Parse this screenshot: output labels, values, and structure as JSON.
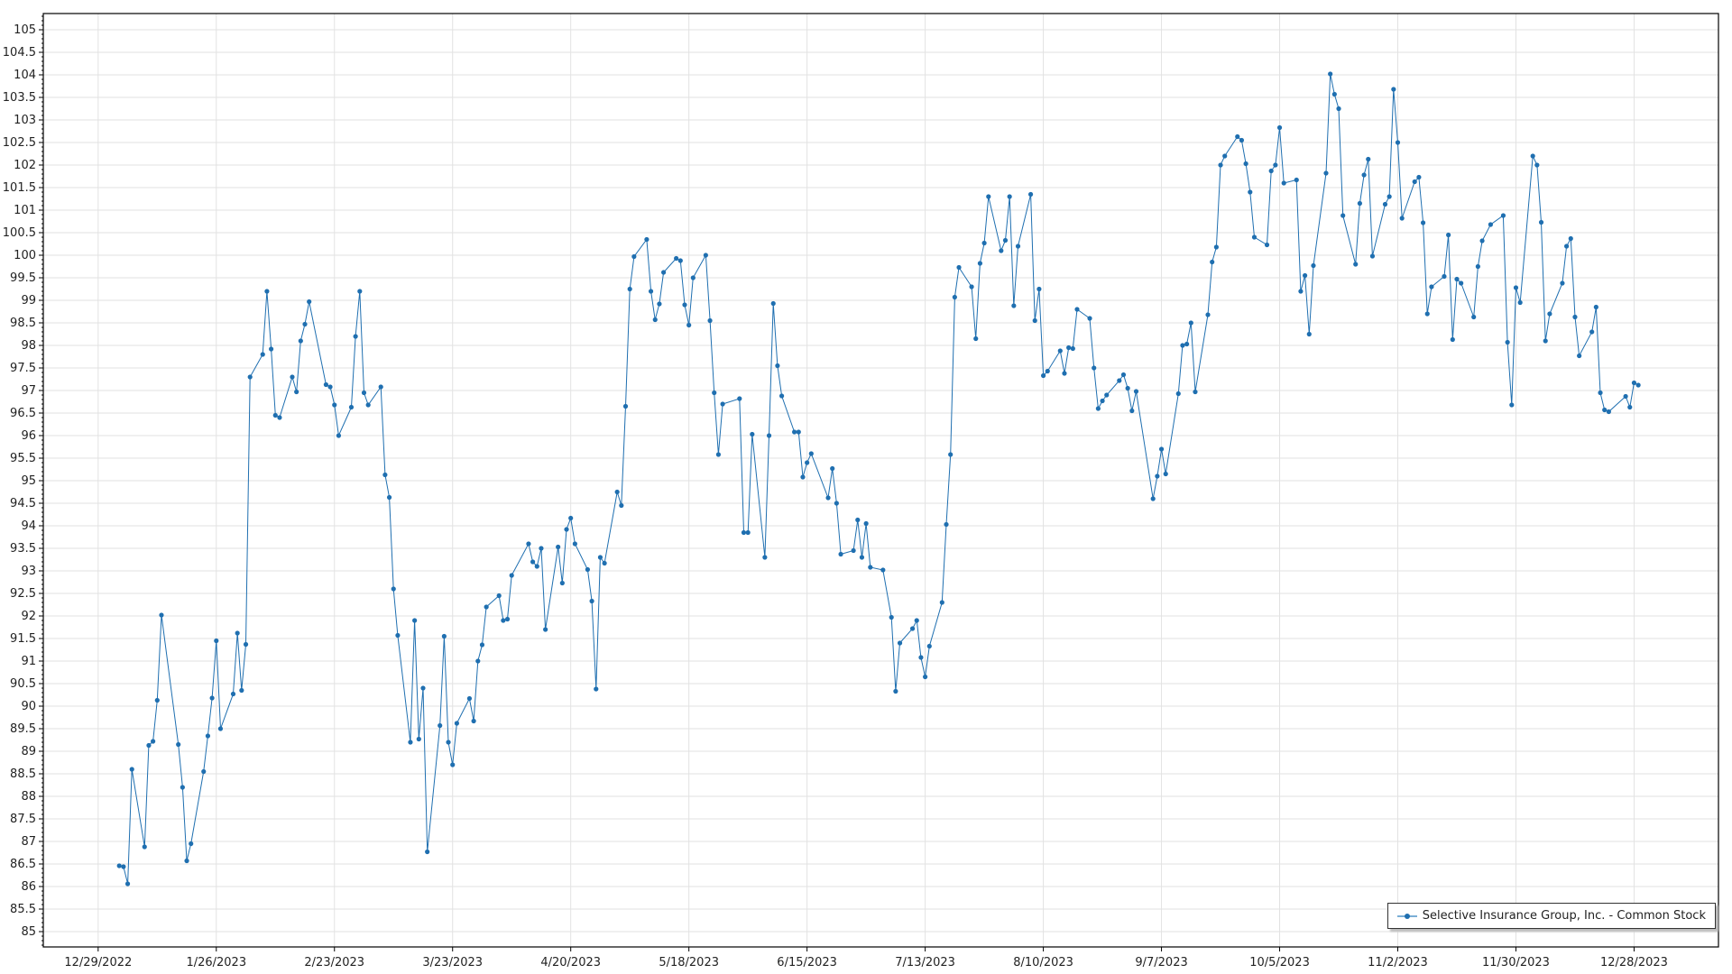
{
  "chart_data": {
    "type": "line",
    "series": [
      {
        "name": "Selective Insurance Group, Inc. - Common Stock",
        "color": "#1f6fb0",
        "points": [
          [
            "2023-01-03",
            86.46
          ],
          [
            "2023-01-04",
            86.44
          ],
          [
            "2023-01-05",
            86.06
          ],
          [
            "2023-01-06",
            88.6
          ],
          [
            "2023-01-09",
            86.88
          ],
          [
            "2023-01-10",
            89.13
          ],
          [
            "2023-01-11",
            89.22
          ],
          [
            "2023-01-12",
            90.13
          ],
          [
            "2023-01-13",
            92.02
          ],
          [
            "2023-01-17",
            89.15
          ],
          [
            "2023-01-18",
            88.2
          ],
          [
            "2023-01-19",
            86.57
          ],
          [
            "2023-01-20",
            86.95
          ],
          [
            "2023-01-23",
            88.55
          ],
          [
            "2023-01-24",
            89.34
          ],
          [
            "2023-01-25",
            90.18
          ],
          [
            "2023-01-26",
            91.45
          ],
          [
            "2023-01-27",
            89.5
          ],
          [
            "2023-01-30",
            90.27
          ],
          [
            "2023-01-31",
            91.62
          ],
          [
            "2023-02-01",
            90.35
          ],
          [
            "2023-02-02",
            91.37
          ],
          [
            "2023-02-03",
            97.3
          ],
          [
            "2023-02-06",
            97.8
          ],
          [
            "2023-02-07",
            99.2
          ],
          [
            "2023-02-08",
            97.92
          ],
          [
            "2023-02-09",
            96.45
          ],
          [
            "2023-02-10",
            96.4
          ],
          [
            "2023-02-13",
            97.3
          ],
          [
            "2023-02-14",
            96.97
          ],
          [
            "2023-02-15",
            98.1
          ],
          [
            "2023-02-16",
            98.47
          ],
          [
            "2023-02-17",
            98.97
          ],
          [
            "2023-02-21",
            97.13
          ],
          [
            "2023-02-22",
            97.08
          ],
          [
            "2023-02-23",
            96.68
          ],
          [
            "2023-02-24",
            96.0
          ],
          [
            "2023-02-27",
            96.63
          ],
          [
            "2023-02-28",
            98.2
          ],
          [
            "2023-03-01",
            99.2
          ],
          [
            "2023-03-02",
            96.95
          ],
          [
            "2023-03-03",
            96.68
          ],
          [
            "2023-03-06",
            97.08
          ],
          [
            "2023-03-07",
            95.13
          ],
          [
            "2023-03-08",
            94.63
          ],
          [
            "2023-03-09",
            92.6
          ],
          [
            "2023-03-10",
            91.57
          ],
          [
            "2023-03-13",
            89.2
          ],
          [
            "2023-03-14",
            91.9
          ],
          [
            "2023-03-15",
            89.27
          ],
          [
            "2023-03-16",
            90.4
          ],
          [
            "2023-03-17",
            86.77
          ],
          [
            "2023-03-20",
            89.57
          ],
          [
            "2023-03-21",
            91.55
          ],
          [
            "2023-03-22",
            89.2
          ],
          [
            "2023-03-23",
            88.7
          ],
          [
            "2023-03-24",
            89.62
          ],
          [
            "2023-03-27",
            90.17
          ],
          [
            "2023-03-28",
            89.67
          ],
          [
            "2023-03-29",
            91.0
          ],
          [
            "2023-03-30",
            91.36
          ],
          [
            "2023-03-31",
            92.2
          ],
          [
            "2023-04-03",
            92.45
          ],
          [
            "2023-04-04",
            91.9
          ],
          [
            "2023-04-05",
            91.93
          ],
          [
            "2023-04-06",
            92.9
          ],
          [
            "2023-04-10",
            93.6
          ],
          [
            "2023-04-11",
            93.2
          ],
          [
            "2023-04-12",
            93.1
          ],
          [
            "2023-04-13",
            93.5
          ],
          [
            "2023-04-14",
            91.7
          ],
          [
            "2023-04-17",
            93.53
          ],
          [
            "2023-04-18",
            92.73
          ],
          [
            "2023-04-19",
            93.92
          ],
          [
            "2023-04-20",
            94.17
          ],
          [
            "2023-04-21",
            93.6
          ],
          [
            "2023-04-24",
            93.03
          ],
          [
            "2023-04-25",
            92.33
          ],
          [
            "2023-04-26",
            90.38
          ],
          [
            "2023-04-27",
            93.3
          ],
          [
            "2023-04-28",
            93.17
          ],
          [
            "2023-05-01",
            94.75
          ],
          [
            "2023-05-02",
            94.45
          ],
          [
            "2023-05-03",
            96.65
          ],
          [
            "2023-05-04",
            99.25
          ],
          [
            "2023-05-05",
            99.97
          ],
          [
            "2023-05-08",
            100.35
          ],
          [
            "2023-05-09",
            99.2
          ],
          [
            "2023-05-10",
            98.57
          ],
          [
            "2023-05-11",
            98.92
          ],
          [
            "2023-05-12",
            99.62
          ],
          [
            "2023-05-15",
            99.93
          ],
          [
            "2023-05-16",
            99.88
          ],
          [
            "2023-05-17",
            98.9
          ],
          [
            "2023-05-18",
            98.45
          ],
          [
            "2023-05-19",
            99.5
          ],
          [
            "2023-05-22",
            100.0
          ],
          [
            "2023-05-23",
            98.55
          ],
          [
            "2023-05-24",
            96.95
          ],
          [
            "2023-05-25",
            95.58
          ],
          [
            "2023-05-26",
            96.7
          ],
          [
            "2023-05-30",
            96.82
          ],
          [
            "2023-05-31",
            93.85
          ],
          [
            "2023-06-01",
            93.85
          ],
          [
            "2023-06-02",
            96.03
          ],
          [
            "2023-06-05",
            93.3
          ],
          [
            "2023-06-06",
            96.0
          ],
          [
            "2023-06-07",
            98.93
          ],
          [
            "2023-06-08",
            97.55
          ],
          [
            "2023-06-09",
            96.88
          ],
          [
            "2023-06-12",
            96.08
          ],
          [
            "2023-06-13",
            96.08
          ],
          [
            "2023-06-14",
            95.08
          ],
          [
            "2023-06-15",
            95.4
          ],
          [
            "2023-06-16",
            95.6
          ],
          [
            "2023-06-20",
            94.62
          ],
          [
            "2023-06-21",
            95.27
          ],
          [
            "2023-06-22",
            94.5
          ],
          [
            "2023-06-23",
            93.37
          ],
          [
            "2023-06-26",
            93.45
          ],
          [
            "2023-06-27",
            94.13
          ],
          [
            "2023-06-28",
            93.3
          ],
          [
            "2023-06-29",
            94.05
          ],
          [
            "2023-06-30",
            93.08
          ],
          [
            "2023-07-03",
            93.02
          ],
          [
            "2023-07-05",
            91.97
          ],
          [
            "2023-07-06",
            90.33
          ],
          [
            "2023-07-07",
            91.4
          ],
          [
            "2023-07-10",
            91.72
          ],
          [
            "2023-07-11",
            91.9
          ],
          [
            "2023-07-12",
            91.08
          ],
          [
            "2023-07-13",
            90.65
          ],
          [
            "2023-07-14",
            91.33
          ],
          [
            "2023-07-17",
            92.3
          ],
          [
            "2023-07-18",
            94.03
          ],
          [
            "2023-07-19",
            95.58
          ],
          [
            "2023-07-20",
            99.07
          ],
          [
            "2023-07-21",
            99.73
          ],
          [
            "2023-07-24",
            99.3
          ],
          [
            "2023-07-25",
            98.15
          ],
          [
            "2023-07-26",
            99.82
          ],
          [
            "2023-07-27",
            100.27
          ],
          [
            "2023-07-28",
            101.3
          ],
          [
            "2023-07-31",
            100.1
          ],
          [
            "2023-08-01",
            100.33
          ],
          [
            "2023-08-02",
            101.3
          ],
          [
            "2023-08-03",
            98.88
          ],
          [
            "2023-08-04",
            100.2
          ],
          [
            "2023-08-07",
            101.35
          ],
          [
            "2023-08-08",
            98.55
          ],
          [
            "2023-08-09",
            99.25
          ],
          [
            "2023-08-10",
            97.33
          ],
          [
            "2023-08-11",
            97.43
          ],
          [
            "2023-08-14",
            97.88
          ],
          [
            "2023-08-15",
            97.38
          ],
          [
            "2023-08-16",
            97.95
          ],
          [
            "2023-08-17",
            97.93
          ],
          [
            "2023-08-18",
            98.8
          ],
          [
            "2023-08-21",
            98.6
          ],
          [
            "2023-08-22",
            97.5
          ],
          [
            "2023-08-23",
            96.6
          ],
          [
            "2023-08-24",
            96.77
          ],
          [
            "2023-08-25",
            96.9
          ],
          [
            "2023-08-28",
            97.22
          ],
          [
            "2023-08-29",
            97.35
          ],
          [
            "2023-08-30",
            97.05
          ],
          [
            "2023-08-31",
            96.55
          ],
          [
            "2023-09-01",
            96.98
          ],
          [
            "2023-09-05",
            94.6
          ],
          [
            "2023-09-06",
            95.1
          ],
          [
            "2023-09-07",
            95.7
          ],
          [
            "2023-09-08",
            95.15
          ],
          [
            "2023-09-11",
            96.93
          ],
          [
            "2023-09-12",
            98.0
          ],
          [
            "2023-09-13",
            98.03
          ],
          [
            "2023-09-14",
            98.5
          ],
          [
            "2023-09-15",
            96.97
          ],
          [
            "2023-09-18",
            98.68
          ],
          [
            "2023-09-19",
            99.85
          ],
          [
            "2023-09-20",
            100.18
          ],
          [
            "2023-09-21",
            102.0
          ],
          [
            "2023-09-22",
            102.2
          ],
          [
            "2023-09-25",
            102.63
          ],
          [
            "2023-09-26",
            102.55
          ],
          [
            "2023-09-27",
            102.03
          ],
          [
            "2023-09-28",
            101.4
          ],
          [
            "2023-09-29",
            100.4
          ],
          [
            "2023-10-02",
            100.23
          ],
          [
            "2023-10-03",
            101.87
          ],
          [
            "2023-10-04",
            102.0
          ],
          [
            "2023-10-05",
            102.83
          ],
          [
            "2023-10-06",
            101.6
          ],
          [
            "2023-10-09",
            101.67
          ],
          [
            "2023-10-10",
            99.2
          ],
          [
            "2023-10-11",
            99.55
          ],
          [
            "2023-10-12",
            98.25
          ],
          [
            "2023-10-13",
            99.77
          ],
          [
            "2023-10-16",
            101.82
          ],
          [
            "2023-10-17",
            104.02
          ],
          [
            "2023-10-18",
            103.57
          ],
          [
            "2023-10-19",
            103.25
          ],
          [
            "2023-10-20",
            100.88
          ],
          [
            "2023-10-23",
            99.8
          ],
          [
            "2023-10-24",
            101.15
          ],
          [
            "2023-10-25",
            101.78
          ],
          [
            "2023-10-26",
            102.13
          ],
          [
            "2023-10-27",
            99.98
          ],
          [
            "2023-10-30",
            101.13
          ],
          [
            "2023-10-31",
            101.3
          ],
          [
            "2023-11-01",
            103.68
          ],
          [
            "2023-11-02",
            102.5
          ],
          [
            "2023-11-03",
            100.82
          ],
          [
            "2023-11-06",
            101.63
          ],
          [
            "2023-11-07",
            101.73
          ],
          [
            "2023-11-08",
            100.72
          ],
          [
            "2023-11-09",
            98.7
          ],
          [
            "2023-11-10",
            99.3
          ],
          [
            "2023-11-13",
            99.53
          ],
          [
            "2023-11-14",
            100.45
          ],
          [
            "2023-11-15",
            98.13
          ],
          [
            "2023-11-16",
            99.47
          ],
          [
            "2023-11-17",
            99.38
          ],
          [
            "2023-11-20",
            98.63
          ],
          [
            "2023-11-21",
            99.75
          ],
          [
            "2023-11-22",
            100.32
          ],
          [
            "2023-11-24",
            100.68
          ],
          [
            "2023-11-27",
            100.88
          ],
          [
            "2023-11-28",
            98.07
          ],
          [
            "2023-11-29",
            96.68
          ],
          [
            "2023-11-30",
            99.28
          ],
          [
            "2023-12-01",
            98.95
          ],
          [
            "2023-12-04",
            102.2
          ],
          [
            "2023-12-05",
            102.0
          ],
          [
            "2023-12-06",
            100.73
          ],
          [
            "2023-12-07",
            98.1
          ],
          [
            "2023-12-08",
            98.7
          ],
          [
            "2023-12-11",
            99.38
          ],
          [
            "2023-12-12",
            100.2
          ],
          [
            "2023-12-13",
            100.37
          ],
          [
            "2023-12-14",
            98.63
          ],
          [
            "2023-12-15",
            97.77
          ],
          [
            "2023-12-18",
            98.3
          ],
          [
            "2023-12-19",
            98.85
          ],
          [
            "2023-12-20",
            96.95
          ],
          [
            "2023-12-21",
            96.57
          ],
          [
            "2023-12-22",
            96.53
          ],
          [
            "2023-12-26",
            96.87
          ],
          [
            "2023-12-27",
            96.63
          ],
          [
            "2023-12-28",
            97.17
          ],
          [
            "2023-12-29",
            97.12
          ]
        ]
      }
    ],
    "xlim": [
      "2022-12-16",
      "2024-01-17"
    ],
    "ylim": [
      84.66,
      105.36
    ],
    "x_ticks": [
      [
        "2022-12-29",
        "12/29/2022"
      ],
      [
        "2023-01-26",
        "1/26/2023"
      ],
      [
        "2023-02-23",
        "2/23/2023"
      ],
      [
        "2023-03-23",
        "3/23/2023"
      ],
      [
        "2023-04-20",
        "4/20/2023"
      ],
      [
        "2023-05-18",
        "5/18/2023"
      ],
      [
        "2023-06-15",
        "6/15/2023"
      ],
      [
        "2023-07-13",
        "7/13/2023"
      ],
      [
        "2023-08-10",
        "8/10/2023"
      ],
      [
        "2023-09-07",
        "9/7/2023"
      ],
      [
        "2023-10-05",
        "10/5/2023"
      ],
      [
        "2023-11-02",
        "11/2/2023"
      ],
      [
        "2023-11-30",
        "11/30/2023"
      ],
      [
        "2023-12-28",
        "12/28/2023"
      ]
    ],
    "y_ticks": [
      "85",
      "85.5",
      "86",
      "86.5",
      "87",
      "87.5",
      "88",
      "88.5",
      "89",
      "89.5",
      "90",
      "90.5",
      "91",
      "91.5",
      "92",
      "92.5",
      "93",
      "93.5",
      "94",
      "94.5",
      "95",
      "95.5",
      "96",
      "96.5",
      "97",
      "97.5",
      "98",
      "98.5",
      "99",
      "99.5",
      "100",
      "100.5",
      "101",
      "101.5",
      "102",
      "102.5",
      "103",
      "103.5",
      "104",
      "104.5",
      "105"
    ],
    "grid": true,
    "legend_position": "bottom-right"
  }
}
